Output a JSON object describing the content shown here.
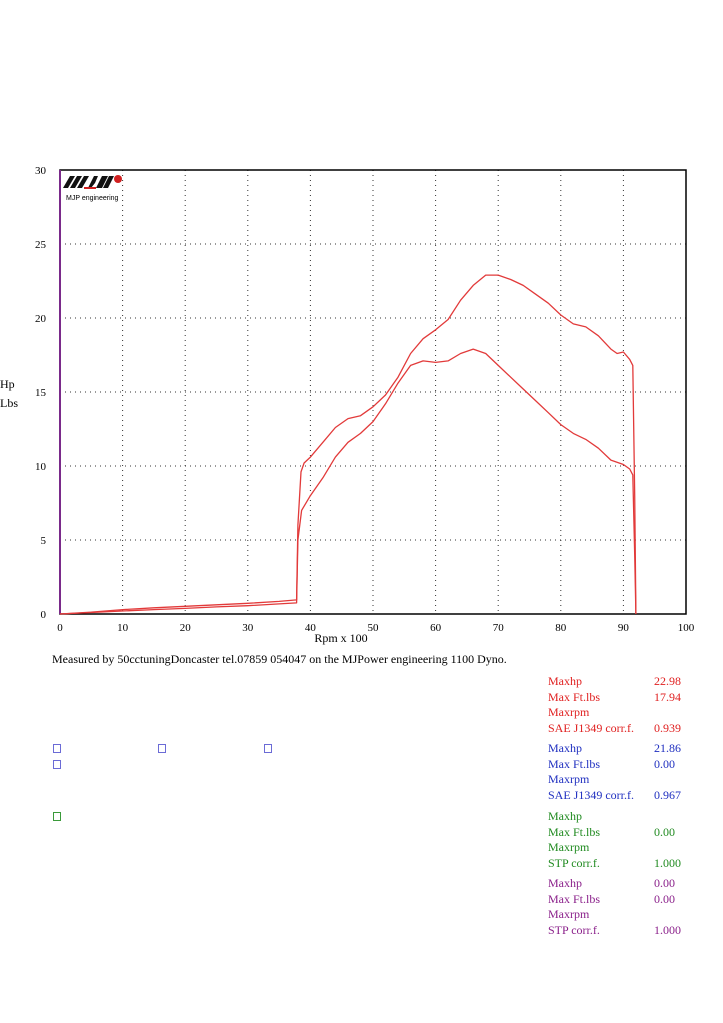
{
  "chart_data": {
    "type": "line",
    "xlabel": "Rpm x 100",
    "ylabels": [
      "Hp",
      "Lbs"
    ],
    "xlim": [
      0,
      100
    ],
    "ylim": [
      0,
      30
    ],
    "xticks": [
      "0",
      "10",
      "20",
      "30",
      "40",
      "50",
      "60",
      "70",
      "80",
      "90",
      "100"
    ],
    "yticks": [
      "0",
      "5",
      "10",
      "15",
      "20",
      "25",
      "30"
    ],
    "grid": true,
    "logo_text": "MJP engineering",
    "series": [
      {
        "color": "#e23a3a",
        "points": [
          [
            0,
            0
          ],
          [
            5,
            0.12
          ],
          [
            10,
            0.3
          ],
          [
            15,
            0.42
          ],
          [
            20,
            0.52
          ],
          [
            25,
            0.62
          ],
          [
            30,
            0.72
          ],
          [
            35,
            0.85
          ],
          [
            37.8,
            0.95
          ],
          [
            38,
            6.0
          ],
          [
            38.5,
            9.6
          ],
          [
            39,
            10.2
          ],
          [
            40,
            10.6
          ],
          [
            42,
            11.6
          ],
          [
            44,
            12.6
          ],
          [
            46,
            13.2
          ],
          [
            48,
            13.4
          ],
          [
            50,
            14.0
          ],
          [
            52,
            14.8
          ],
          [
            54,
            16.0
          ],
          [
            56,
            17.6
          ],
          [
            58,
            18.6
          ],
          [
            60,
            19.2
          ],
          [
            62,
            19.9
          ],
          [
            64,
            21.2
          ],
          [
            66,
            22.2
          ],
          [
            68,
            22.9
          ],
          [
            70,
            22.9
          ],
          [
            72,
            22.6
          ],
          [
            74,
            22.2
          ],
          [
            76,
            21.6
          ],
          [
            78,
            21.0
          ],
          [
            80,
            20.2
          ],
          [
            82,
            19.6
          ],
          [
            84,
            19.4
          ],
          [
            86,
            18.8
          ],
          [
            88,
            17.9
          ],
          [
            89,
            17.6
          ],
          [
            90,
            17.7
          ],
          [
            91,
            17.2
          ],
          [
            91.5,
            16.8
          ],
          [
            91.8,
            8.0
          ],
          [
            92,
            0
          ]
        ]
      },
      {
        "color": "#e23a3a",
        "points": [
          [
            0,
            0
          ],
          [
            5,
            0.1
          ],
          [
            10,
            0.2
          ],
          [
            15,
            0.3
          ],
          [
            20,
            0.38
          ],
          [
            25,
            0.48
          ],
          [
            30,
            0.56
          ],
          [
            35,
            0.68
          ],
          [
            37.8,
            0.75
          ],
          [
            38,
            5.0
          ],
          [
            38.6,
            7.0
          ],
          [
            40,
            8.0
          ],
          [
            42,
            9.2
          ],
          [
            44,
            10.6
          ],
          [
            46,
            11.6
          ],
          [
            48,
            12.2
          ],
          [
            50,
            13.0
          ],
          [
            52,
            14.2
          ],
          [
            54,
            15.6
          ],
          [
            56,
            16.8
          ],
          [
            58,
            17.1
          ],
          [
            60,
            17.0
          ],
          [
            62,
            17.1
          ],
          [
            64,
            17.6
          ],
          [
            66,
            17.9
          ],
          [
            68,
            17.6
          ],
          [
            70,
            16.8
          ],
          [
            72,
            16.0
          ],
          [
            74,
            15.2
          ],
          [
            76,
            14.4
          ],
          [
            78,
            13.6
          ],
          [
            80,
            12.8
          ],
          [
            82,
            12.2
          ],
          [
            84,
            11.8
          ],
          [
            86,
            11.2
          ],
          [
            88,
            10.4
          ],
          [
            90,
            10.1
          ],
          [
            91,
            9.8
          ],
          [
            91.5,
            9.4
          ],
          [
            91.8,
            4.0
          ],
          [
            92,
            0
          ]
        ]
      }
    ]
  },
  "footnote": "Measured by 50cctuningDoncaster tel.07859 054047 on the MJPower engineering 1100 Dyno.",
  "results": [
    {
      "color": "#e02020",
      "rows": [
        {
          "label": "Maxhp",
          "value": "22.98"
        },
        {
          "label": "Max Ft.lbs",
          "value": "17.94"
        },
        {
          "label": "Maxrpm",
          "value": ""
        },
        {
          "label": "SAE J1349 corr.f.",
          "value": "0.939"
        }
      ]
    },
    {
      "color": "#1f2fc0",
      "rows": [
        {
          "label": "Maxhp",
          "value": "21.86"
        },
        {
          "label": "Max Ft.lbs",
          "value": "0.00"
        },
        {
          "label": "Maxrpm",
          "value": ""
        },
        {
          "label": "SAE J1349 corr.f.",
          "value": "0.967"
        }
      ]
    },
    {
      "color": "#1f8a1f",
      "rows": [
        {
          "label": "Maxhp",
          "value": ""
        },
        {
          "label": "Max Ft.lbs",
          "value": "0.00"
        },
        {
          "label": "Maxrpm",
          "value": ""
        },
        {
          "label": "STP corr.f.",
          "value": "1.000"
        }
      ]
    },
    {
      "color": "#8a1f8a",
      "rows": [
        {
          "label": "Maxhp",
          "value": "0.00"
        },
        {
          "label": "Max Ft.lbs",
          "value": "0.00"
        },
        {
          "label": "Maxrpm",
          "value": ""
        },
        {
          "label": "STP corr.f.",
          "value": "1.000"
        }
      ]
    }
  ]
}
